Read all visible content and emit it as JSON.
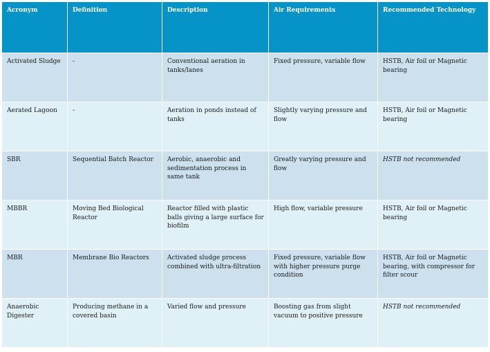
{
  "table": {
    "headers": [
      "Acronym",
      "Definition",
      "Description",
      "Air Requirements",
      "Recommended Technology"
    ],
    "rows": [
      {
        "acronym": "Activated Sludge",
        "definition": "-",
        "description": "Conventional aeration in tanks/lanes",
        "air": "Fixed pressure, variable flow",
        "technology": "HSTB, Air foil or Magnetic bearing"
      },
      {
        "acronym": "Aerated Lagoon",
        "definition": "-",
        "description": "Aeration in ponds instead of tanks",
        "air": "Slightly varying pressure and flow",
        "technology": "HSTB, Air foil or Magnetic bearing"
      },
      {
        "acronym": "SBR",
        "definition": "Sequential Batch Reactor",
        "description": "Aerobic, anaerobic and sedimentation process in same tank",
        "air": "Greatly varying pressure and flow",
        "technology": "HSTB not recommended"
      },
      {
        "acronym": "MBBR",
        "definition": "Moving Bed Biological Reactor",
        "description": "Reactor filled with plastic balls giving a large surface for biofilm",
        "air": "High flow, variable pressure",
        "technology": "HSTB, Air foil or Magnetic bearing"
      },
      {
        "acronym": "MBR",
        "definition": "Membrane Bio Reactors",
        "description": "Activated sludge process combined with ultra-filtration",
        "air": "Fixed pressure, variable flow with higher pressure purge condition",
        "technology": "HSTB, Air foil or Magnetic bearing, with compressor for filter scour"
      },
      {
        "acronym": "Anaerobic Digester",
        "definition": "Producing methane in a covered basin",
        "description": "Varied flow and pressure",
        "air": "Boosting gas from slight vacuum to positive pressure",
        "technology": "HSTB not recommended"
      }
    ]
  },
  "colors": {
    "header_bg": "#0593c8",
    "row_odd": "#cce0ee",
    "row_even": "#dff1f7"
  }
}
